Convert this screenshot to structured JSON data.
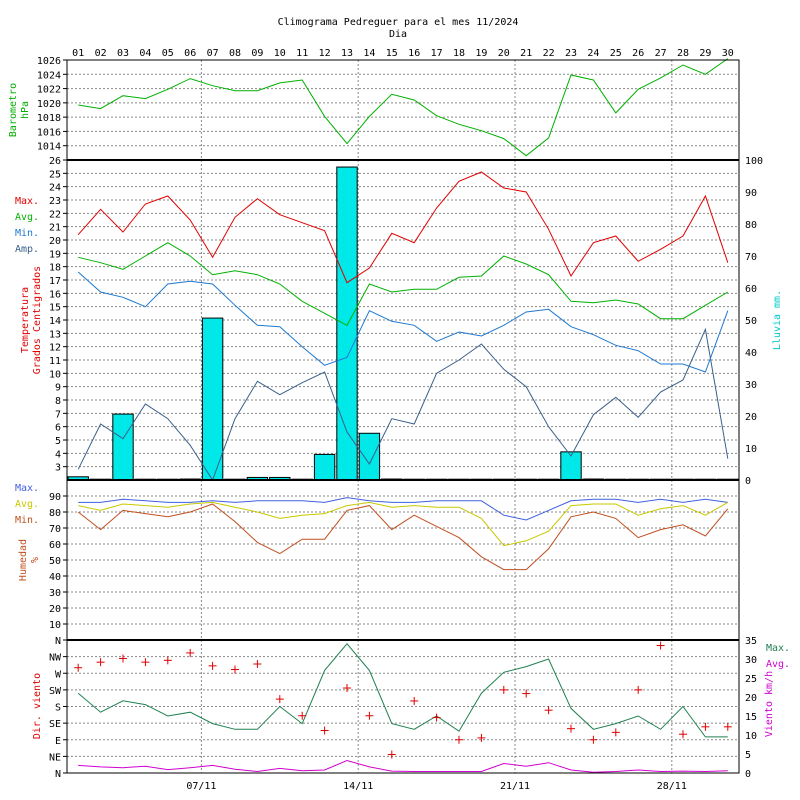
{
  "chart_data": {
    "type": "line",
    "title": "Climograma Pedreguer para el mes 11/2024",
    "subtitle": "Dia",
    "days": [
      "01",
      "02",
      "03",
      "04",
      "05",
      "06",
      "07",
      "08",
      "09",
      "10",
      "11",
      "12",
      "13",
      "14",
      "15",
      "16",
      "17",
      "18",
      "19",
      "20",
      "21",
      "22",
      "23",
      "24",
      "25",
      "26",
      "27",
      "28",
      "29",
      "30"
    ],
    "week_labels": [
      {
        "day": 7,
        "label": "07/11"
      },
      {
        "day": 14,
        "label": "14/11"
      },
      {
        "day": 21,
        "label": "21/11"
      },
      {
        "day": 28,
        "label": "28/11"
      }
    ],
    "colors": {
      "pressure": "#00b000",
      "tmax": "#e00000",
      "tavg": "#00b000",
      "tmin": "#1e78d0",
      "tamp": "#3a5f8a",
      "rain": "#00e8e8",
      "hmax": "#4060e0",
      "havg": "#c8c800",
      "hmin": "#c05020",
      "wind_max": "#208050",
      "wind_avg": "#d000d0",
      "wind_dir": "#e00000"
    },
    "pressure": {
      "ylabel": [
        "Barometro",
        "hPa"
      ],
      "ylim": [
        1012,
        1026
      ],
      "ticks": [
        1014,
        1016,
        1018,
        1020,
        1022,
        1024,
        1026
      ],
      "values": [
        1019.7,
        1019.2,
        1021,
        1020.6,
        1021.9,
        1023.4,
        1022.4,
        1021.7,
        1021.7,
        1022.8,
        1023.2,
        1018.1,
        1014.3,
        1018.1,
        1021.2,
        1020.4,
        1018.2,
        1017,
        1016.1,
        1015,
        1012.6,
        1015.1,
        1023.9,
        1023.2,
        1018.6,
        1021.9,
        1023.5,
        1025.3,
        1024,
        1026.2
      ]
    },
    "temperature": {
      "ylabel": [
        "Temperatura",
        "Grados Centigrados"
      ],
      "ylim": [
        2,
        26
      ],
      "ticks": [
        3,
        4,
        5,
        6,
        7,
        8,
        9,
        10,
        11,
        12,
        13,
        14,
        15,
        16,
        17,
        18,
        19,
        20,
        21,
        22,
        23,
        24,
        25,
        26
      ],
      "legend": [
        "Max.",
        "Avg.",
        "Min.",
        "Amp."
      ],
      "tmax": [
        20.4,
        22.3,
        20.6,
        22.7,
        23.3,
        21.5,
        18.7,
        21.7,
        23.1,
        21.9,
        21.3,
        20.7,
        16.8,
        17.9,
        20.5,
        19.8,
        22.4,
        24.4,
        25.1,
        23.9,
        23.6,
        20.8,
        17.3,
        19.8,
        20.3,
        18.4,
        19.3,
        20.3,
        23.3,
        18.3
      ],
      "tavg": [
        18.7,
        18.3,
        17.8,
        18.8,
        19.8,
        18.8,
        17.4,
        17.7,
        17.4,
        16.7,
        15.4,
        14.5,
        13.6,
        16.7,
        16.1,
        16.3,
        16.3,
        17.2,
        17.3,
        18.8,
        18.2,
        17.4,
        15.4,
        15.3,
        15.5,
        15.2,
        14.1,
        14.1,
        15.1,
        16.1
      ],
      "tmin": [
        17.6,
        16.1,
        15.7,
        15,
        16.7,
        16.9,
        16.7,
        15.1,
        13.6,
        13.5,
        12,
        10.6,
        11.2,
        14.7,
        13.9,
        13.6,
        12.4,
        13.1,
        12.8,
        13.6,
        14.6,
        14.8,
        13.5,
        12.9,
        12.1,
        11.7,
        10.7,
        10.7,
        10.1,
        14.7
      ],
      "tamp": [
        2.8,
        6.2,
        5.1,
        7.7,
        6.6,
        4.6,
        2,
        6.6,
        9.4,
        8.4,
        9.3,
        10.1,
        5.6,
        3.2,
        6.6,
        6.2,
        10,
        11,
        12.2,
        10.3,
        9,
        6,
        3.8,
        6.9,
        8.2,
        6.7,
        8.6,
        9.5,
        13.3,
        3.6
      ],
      "rain_label": "Lluvia mm.",
      "rain_ylim": [
        0,
        100
      ],
      "rain_ticks": [
        0,
        10,
        20,
        30,
        40,
        50,
        60,
        70,
        80,
        90,
        100
      ],
      "rain": [
        1,
        0.2,
        20.6,
        0,
        0,
        0.3,
        50.6,
        0,
        0.8,
        0.8,
        0,
        8,
        97.8,
        14.6,
        0.3,
        0,
        0,
        0.2,
        0.2,
        0,
        0.2,
        0,
        8.8,
        0.3,
        0,
        0,
        0.2,
        0.2,
        0,
        0.2
      ]
    },
    "humidity": {
      "ylabel": [
        "Humedad",
        "%"
      ],
      "ylim": [
        0,
        100
      ],
      "ticks": [
        10,
        20,
        30,
        40,
        50,
        60,
        70,
        80,
        90
      ],
      "legend": [
        "Max.",
        "Avg.",
        "Min."
      ],
      "hmax": [
        86,
        86,
        88,
        87,
        86,
        86,
        87,
        86,
        87,
        87,
        87,
        86,
        89,
        87,
        86,
        86,
        87,
        87,
        87,
        78,
        75,
        81,
        87,
        88,
        88,
        86,
        88,
        86,
        88,
        86
      ],
      "havg": [
        84,
        81,
        85,
        84,
        83,
        85,
        86,
        83,
        80,
        76,
        78,
        79,
        84,
        86,
        83,
        84,
        83,
        83,
        76,
        59,
        62,
        68,
        84,
        85,
        85,
        78,
        82,
        84,
        78,
        86
      ],
      "hmin": [
        80,
        69,
        81,
        79,
        77,
        80,
        85,
        74,
        61,
        54,
        63,
        63,
        81,
        84,
        69,
        78,
        71,
        64,
        52,
        44,
        44,
        57,
        77,
        80,
        76,
        64,
        69,
        72,
        65,
        82
      ]
    },
    "wind": {
      "ylabel": "Dir. viento",
      "dir_ticks": [
        "N",
        "NE",
        "E",
        "SE",
        "S",
        "SW",
        "W",
        "NW",
        "N"
      ],
      "speed_label": "Viento km/h",
      "speed_ylim": [
        0,
        35
      ],
      "speed_ticks": [
        0,
        5,
        10,
        15,
        20,
        25,
        30,
        35
      ],
      "legend": [
        "Max.",
        "Avg."
      ],
      "wind_max": [
        21,
        16,
        19,
        18,
        15,
        16,
        13,
        11.5,
        11.5,
        17.5,
        13,
        27,
        34,
        27,
        13,
        11.5,
        15,
        11,
        21,
        26.5,
        28,
        30,
        17,
        11.5,
        13,
        15,
        11.5,
        17.5,
        9.5,
        9.5
      ],
      "wind_avg": [
        2,
        1.6,
        1.4,
        1.8,
        0.9,
        1.4,
        2,
        1,
        0.4,
        1.2,
        0.6,
        0.8,
        3.3,
        1.6,
        0.5,
        0.4,
        0.4,
        0.4,
        0.4,
        2.5,
        1.8,
        2.7,
        0.8,
        0.2,
        0.4,
        0.8,
        0.4,
        0.5,
        0.4,
        0.6
      ],
      "wind_dir": [
        285,
        300,
        310,
        300,
        305,
        325,
        290,
        280,
        295,
        200,
        155,
        115,
        230,
        155,
        50,
        195,
        150,
        90,
        95,
        225,
        215,
        170,
        120,
        90,
        110,
        225,
        345,
        105,
        125,
        125
      ]
    }
  }
}
